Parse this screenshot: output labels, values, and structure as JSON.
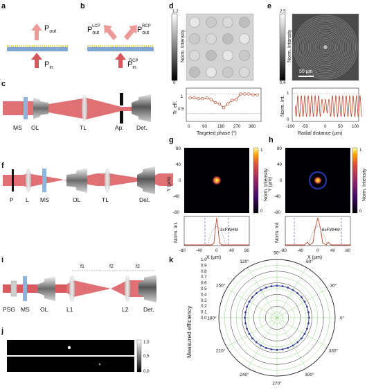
{
  "panels": {
    "a": {
      "letter": "a",
      "p_out": "P",
      "p_out_sub": "out",
      "p_in": "P",
      "p_in_sub": "in"
    },
    "b": {
      "letter": "b",
      "p_lcp": "P",
      "p_lcp_sub": "out",
      "p_lcp_sup": "LCP",
      "p_rcp": "P",
      "p_rcp_sub": "out",
      "p_rcp_sup": "RCP",
      "p_in": "P",
      "p_in_sub": "in",
      "p_in_sup": "RCP"
    },
    "c": {
      "letter": "c",
      "labels": [
        "MS",
        "OL",
        "TL",
        "Ap.",
        "Det."
      ]
    },
    "d": {
      "letter": "d",
      "colorbar_label": "Norm. Intensity",
      "cb_max": "1.2",
      "cb_min": "0",
      "plot_ylabel": "Tr. eff.",
      "plot_xlabel": "Targeted phase (°)",
      "yticks": [
        "1",
        "0.5"
      ],
      "xticks": [
        "0",
        "90",
        "180",
        "270",
        "360"
      ]
    },
    "e": {
      "letter": "e",
      "colorbar_label": "Norm. Intensity",
      "cb_max": "2.5",
      "cb_min": "0.4",
      "scalebar": "50 µm",
      "plot_ylabel": "Norm. Int.",
      "plot_xlabel": "Radial distance (µm)",
      "yticks": [
        "1",
        "0"
      ],
      "xticks": [
        "-100",
        "-50",
        "0",
        "50",
        "100"
      ]
    },
    "f": {
      "letter": "f",
      "labels": [
        "P",
        "L",
        "MS",
        "OL",
        "TL",
        "Det."
      ]
    },
    "g": {
      "letter": "g",
      "ylabel": "Y (µm)",
      "yticks": [
        "80",
        "40",
        "0",
        "-40",
        "-80"
      ],
      "cb_label": "Norm. Intensity",
      "cb_max": "1",
      "cb_min": "0",
      "plot_ylabel": "Norm. int.",
      "plot_xlabel": "X (µm)",
      "xticks": [
        "-80",
        "-40",
        "0",
        "40",
        "80"
      ],
      "fwhm": "3xFWHM"
    },
    "h": {
      "letter": "h",
      "ylabel": "Y (µm)",
      "yticks": [
        "80",
        "40",
        "0",
        "-40",
        "-80"
      ],
      "cb_label": "Norm. Intensity",
      "cb_max": "1",
      "cb_min": "0",
      "plot_ylabel": "Norm. Int.",
      "plot_xlabel": "X (µm)",
      "xticks": [
        "-80",
        "-40",
        "0",
        "40",
        "80"
      ],
      "fwhm": "6xFWHM"
    },
    "i": {
      "letter": "i",
      "labels": [
        "PSG",
        "MS",
        "OL",
        "L1",
        "L2",
        "Det."
      ],
      "focal": [
        "f1",
        "f2",
        "f2"
      ]
    },
    "j": {
      "letter": "j",
      "cb_ticks": [
        "1.0",
        "0.5",
        "0.0"
      ]
    },
    "k": {
      "letter": "k",
      "ylabel": "Measured efficiency",
      "radial_ticks": [
        "1.0",
        "0.9",
        "0.8",
        "0.7",
        "0.6",
        "0.5",
        "0.4",
        "0.3",
        "0.2",
        "0.1",
        "0.0"
      ],
      "angle_labels": [
        "90°",
        "60°",
        "30°",
        "0°",
        "330°",
        "300°",
        "270°",
        "240°",
        "210°",
        "180°",
        "150°",
        "120°"
      ]
    }
  },
  "chart_data": [
    {
      "type": "line",
      "panel": "d",
      "xlabel": "Targeted phase (°)",
      "ylabel": "Tr. eff.",
      "x": [
        0,
        22.5,
        45,
        67.5,
        90,
        112.5,
        135,
        157.5,
        180,
        202.5,
        225,
        247.5,
        270,
        292.5,
        315,
        337.5,
        360
      ],
      "y": [
        0.9,
        0.9,
        0.88,
        0.88,
        0.9,
        0.86,
        0.78,
        0.75,
        0.65,
        0.75,
        0.84,
        0.86,
        1.0,
        1.0,
        1.0,
        0.98,
        0.98
      ],
      "xlim": [
        -20,
        380
      ],
      "ylim": [
        0.3,
        1.15
      ]
    },
    {
      "type": "polar",
      "panel": "k",
      "ylabel": "Measured efficiency",
      "radius_range": [
        0,
        1
      ],
      "angles": [
        0,
        10,
        20,
        30,
        40,
        50,
        60,
        70,
        80,
        90,
        100,
        110,
        120,
        130,
        140,
        150,
        160,
        170,
        180,
        190,
        200,
        210,
        220,
        230,
        240,
        250,
        260,
        270,
        280,
        290,
        300,
        310,
        320,
        330,
        340,
        350
      ],
      "values": [
        0.55,
        0.55,
        0.55,
        0.55,
        0.55,
        0.55,
        0.55,
        0.55,
        0.55,
        0.55,
        0.55,
        0.55,
        0.55,
        0.55,
        0.55,
        0.55,
        0.55,
        0.55,
        0.55,
        0.55,
        0.55,
        0.55,
        0.55,
        0.55,
        0.55,
        0.55,
        0.55,
        0.55,
        0.55,
        0.55,
        0.55,
        0.55,
        0.55,
        0.55,
        0.55,
        0.55
      ]
    }
  ],
  "colors": {
    "beam": "#d9575c",
    "beam_light": "#ec9a98",
    "metasurface": "#8fb4d9",
    "nanopillar": "#d9d150",
    "substrate": "#7fa9d4",
    "curve": "#b5462a",
    "polar_curve": "#2f3a8f",
    "polar_grid": "#8ed07c"
  }
}
